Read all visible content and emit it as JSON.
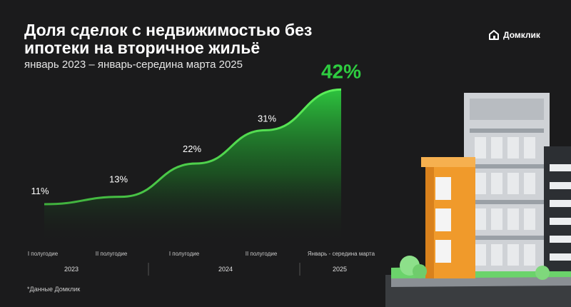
{
  "header": {
    "title": "Доля сделок с недвижимостью без ипотеки на вторичное жильё",
    "subtitle": "январь 2023 – январь-середина марта 2025",
    "brand": "Домклик"
  },
  "footnote": "*Данные Домклик",
  "colors": {
    "accent": "#2ecc40",
    "background": "#1b1b1c",
    "text": "#ffffff"
  },
  "chart_data": {
    "type": "area",
    "title": "Доля сделок с недвижимостью без ипотеки на вторичное жильё",
    "subtitle": "январь 2023 – январь-середина марта 2025",
    "categories": [
      "I полугодие",
      "II полугодие",
      "I полугодие",
      "II полугодие",
      "Январь - середина марта"
    ],
    "groups": [
      {
        "label": "2023",
        "categories": [
          0,
          1
        ]
      },
      {
        "label": "2024",
        "categories": [
          2,
          3
        ]
      },
      {
        "label": "2025",
        "categories": [
          4
        ]
      }
    ],
    "values": [
      11,
      13,
      22,
      31,
      42
    ],
    "value_labels": [
      "11%",
      "13%",
      "22%",
      "31%",
      "42%"
    ],
    "unit": "%",
    "grid": false,
    "legend": "none"
  }
}
